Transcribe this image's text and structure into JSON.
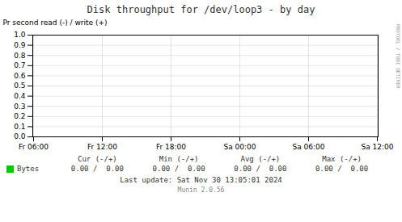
{
  "chart_data": {
    "type": "line",
    "title": "Disk throughput for /dev/loop3  -  by day",
    "ylabel": "Pr second read (-) / write (+)",
    "categories": [
      "Fr 06:00",
      "Fr 12:00",
      "Fr 18:00",
      "Sa 00:00",
      "Sa 06:00",
      "Sa 12:00"
    ],
    "series": [
      {
        "name": "Bytes",
        "color": "#00cc00",
        "values": [
          null,
          null,
          null,
          null,
          null,
          null
        ]
      }
    ],
    "ylim": [
      0.0,
      1.0
    ],
    "yticks": [
      {
        "value": 0,
        "label": "0.0"
      },
      0.1,
      0.2,
      0.3,
      0.4,
      0.5,
      0.6,
      0.7,
      0.8,
      0.9,
      {
        "value": 1,
        "label": "1.0"
      }
    ],
    "grid": true,
    "stats": [
      {
        "label": "Cur (-/+)",
        "value": "0.00 /  0.00"
      },
      {
        "label": "Min (-/+)",
        "value": "0.00 /  0.00"
      },
      {
        "label": "Avg (-/+)",
        "value": "0.00 /  0.00"
      },
      {
        "label": "Max (-/+)",
        "value": "0.00 /  0.00"
      }
    ],
    "annotations": [
      "Last update: Sat Nov 30 13:05:01 2024",
      "Munin 2.0.56",
      "RRDTOOL / TOBI OETIKER"
    ]
  }
}
